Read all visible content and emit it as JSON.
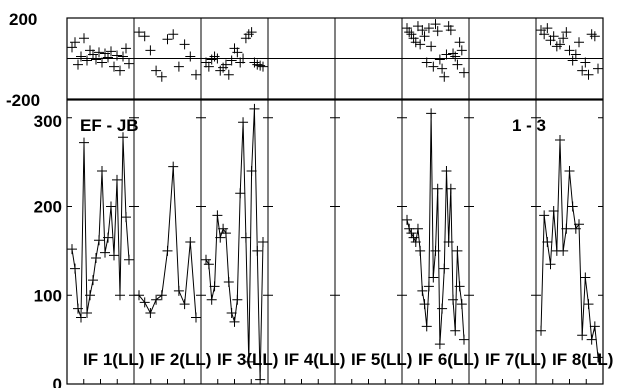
{
  "chart_data": {
    "type": "scatter",
    "description_free": true,
    "baseline": "EF - JB",
    "stokes_label": "1 - 3",
    "top_axis": {
      "ylim": [
        -200,
        200
      ],
      "ticks": [
        "200",
        "-200"
      ]
    },
    "bottom_axis": {
      "ylim": [
        0,
        320
      ],
      "ticks": [
        "300",
        "200",
        "100",
        "0"
      ],
      "tick_values": [
        300,
        200,
        100,
        0
      ]
    },
    "panels": [
      {
        "label": "IF 1(LL)",
        "amplitude": [
          152,
          130,
          85,
          75,
          272,
          80,
          100,
          117,
          142,
          162,
          240,
          148,
          165,
          200,
          145,
          230,
          100,
          278,
          188,
          140
        ],
        "phase": [
          55,
          80,
          -30,
          10,
          100,
          -10,
          40,
          20,
          -5,
          30,
          -20,
          25,
          5,
          35,
          -40,
          15,
          -60,
          10,
          50,
          -25
        ]
      },
      {
        "label": "IF 2(LL)",
        "amplitude": [
          100,
          92,
          80,
          95,
          100,
          150,
          245,
          105,
          90,
          160,
          75
        ],
        "phase": [
          130,
          110,
          40,
          -60,
          -90,
          95,
          120,
          -40,
          70,
          10,
          -80
        ]
      },
      {
        "label": "IF 3(LL)",
        "amplitude": [
          140,
          135,
          95,
          110,
          190,
          165,
          175,
          170,
          115,
          80,
          70,
          95,
          215,
          295,
          165,
          25,
          240,
          310,
          150,
          5,
          160
        ],
        "phase": [
          -20,
          -40,
          -5,
          10,
          0,
          -60,
          -45,
          -30,
          -80,
          -10,
          50,
          30,
          -20,
          0,
          100,
          120,
          130,
          -20,
          -30,
          -35,
          -40
        ]
      },
      {
        "label": "IF 4(LL)",
        "amplitude": [],
        "phase": []
      },
      {
        "label": "IF 5(LL)",
        "amplitude": [],
        "phase": []
      },
      {
        "label": "IF 6(LL)",
        "amplitude": [
          185,
          175,
          170,
          165,
          160,
          175,
          150,
          105,
          90,
          65,
          110,
          305,
          120,
          150,
          220,
          45,
          85,
          130,
          240,
          160,
          220,
          95,
          60,
          150,
          110,
          90,
          50
        ],
        "phase": [
          150,
          130,
          120,
          100,
          80,
          160,
          70,
          140,
          110,
          -20,
          150,
          60,
          -40,
          170,
          135,
          -5,
          -50,
          -90,
          20,
          160,
          140,
          25,
          10,
          -30,
          80,
          40,
          -70
        ]
      },
      {
        "label": "IF 7(LL)",
        "amplitude": [],
        "phase": []
      },
      {
        "label": "IF 8(LL)",
        "amplitude": [
          60,
          190,
          160,
          135,
          195,
          150,
          275,
          150,
          175,
          240,
          200,
          175,
          180,
          55,
          120,
          90,
          50,
          65,
          30
        ],
        "phase": [
          140,
          120,
          150,
          90,
          110,
          60,
          70,
          100,
          130,
          40,
          -10,
          20,
          80,
          -60,
          -20,
          -80,
          120,
          110,
          -50
        ]
      }
    ]
  }
}
